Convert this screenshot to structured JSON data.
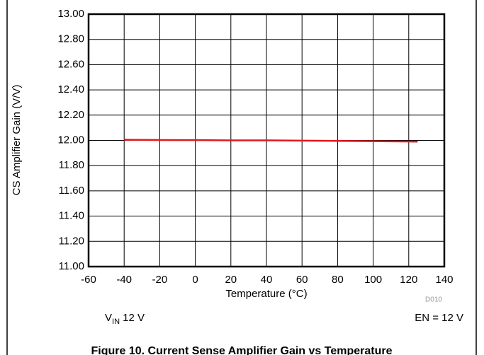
{
  "chart_data": {
    "type": "line",
    "caption": "Figure 10. Current Sense Amplifier Gain vs Temperature",
    "x_label": "Temperature (°C)",
    "y_label": "CS Amplifier Gain (V/V)",
    "source_code": "D010",
    "conditions": {
      "left": {
        "main": "V",
        "sub": "IN",
        "rest": " 12 V"
      },
      "right": "EN = 12 V"
    },
    "x": [
      -40,
      -20,
      0,
      20,
      40,
      60,
      80,
      100,
      125
    ],
    "series": [
      {
        "name": "Gain",
        "color": "#e0191e",
        "values": [
          12.005,
          12.003,
          12.002,
          12.0,
          12.0,
          11.998,
          11.996,
          11.994,
          11.99
        ]
      }
    ],
    "xlim": [
      -60,
      140
    ],
    "xticks": [
      -60,
      -40,
      -20,
      0,
      20,
      40,
      60,
      80,
      100,
      120,
      140
    ],
    "ylim": [
      11,
      13
    ],
    "yticks": [
      {
        "value": 11,
        "label": "11.00"
      },
      {
        "value": 11.2,
        "label": "11.20"
      },
      {
        "value": 11.4,
        "label": "11.40"
      },
      {
        "value": 11.6,
        "label": "11.60"
      },
      {
        "value": 11.8,
        "label": "11.80"
      },
      {
        "value": 12,
        "label": "12.00"
      },
      {
        "value": 12.2,
        "label": "12.20"
      },
      {
        "value": 12.4,
        "label": "12.40"
      },
      {
        "value": 12.6,
        "label": "12.60"
      },
      {
        "value": 12.8,
        "label": "12.80"
      },
      {
        "value": 13,
        "label": "13.00"
      }
    ],
    "grid": true
  }
}
